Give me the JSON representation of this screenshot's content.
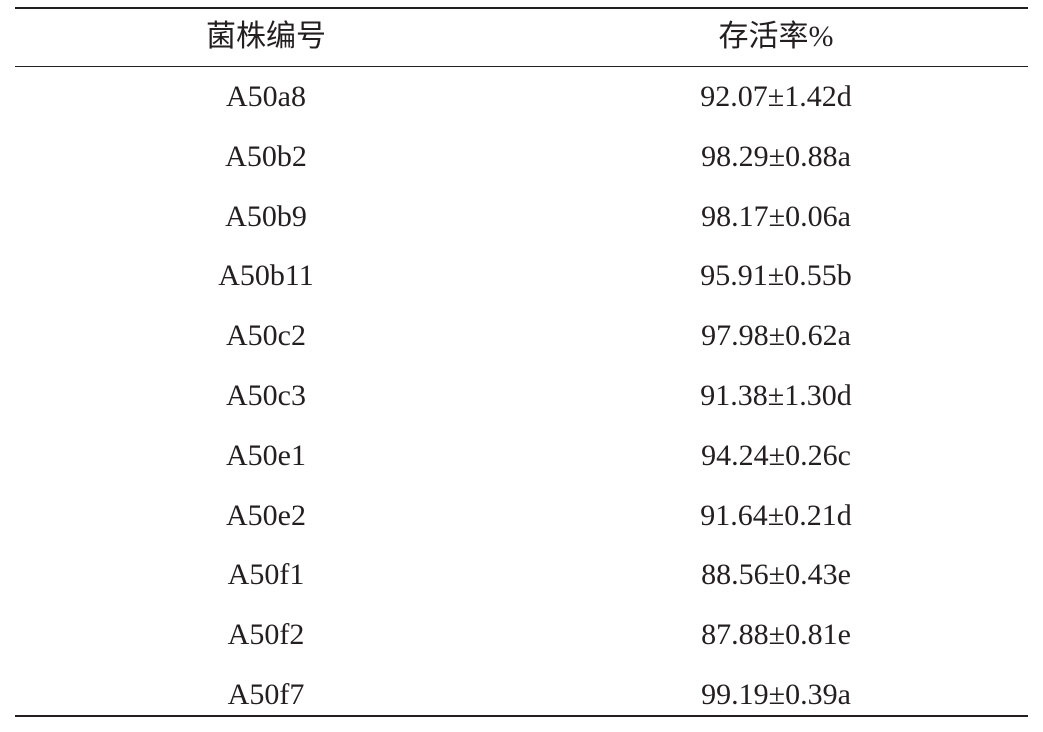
{
  "table": {
    "headers": [
      "菌株编号",
      "存活率%"
    ],
    "rows": [
      [
        "A50a8",
        "92.07±1.42d"
      ],
      [
        "A50b2",
        "98.29±0.88a"
      ],
      [
        "A50b9",
        "98.17±0.06a"
      ],
      [
        "A50b11",
        "95.91±0.55b"
      ],
      [
        "A50c2",
        "97.98±0.62a"
      ],
      [
        "A50c3",
        "91.38±1.30d"
      ],
      [
        "A50e1",
        "94.24±0.26c"
      ],
      [
        "A50e2",
        "91.64±0.21d"
      ],
      [
        "A50f1",
        "88.56±0.43e"
      ],
      [
        "A50f2",
        "87.88±0.81e"
      ],
      [
        "A50f7",
        "99.19±0.39a"
      ]
    ]
  }
}
